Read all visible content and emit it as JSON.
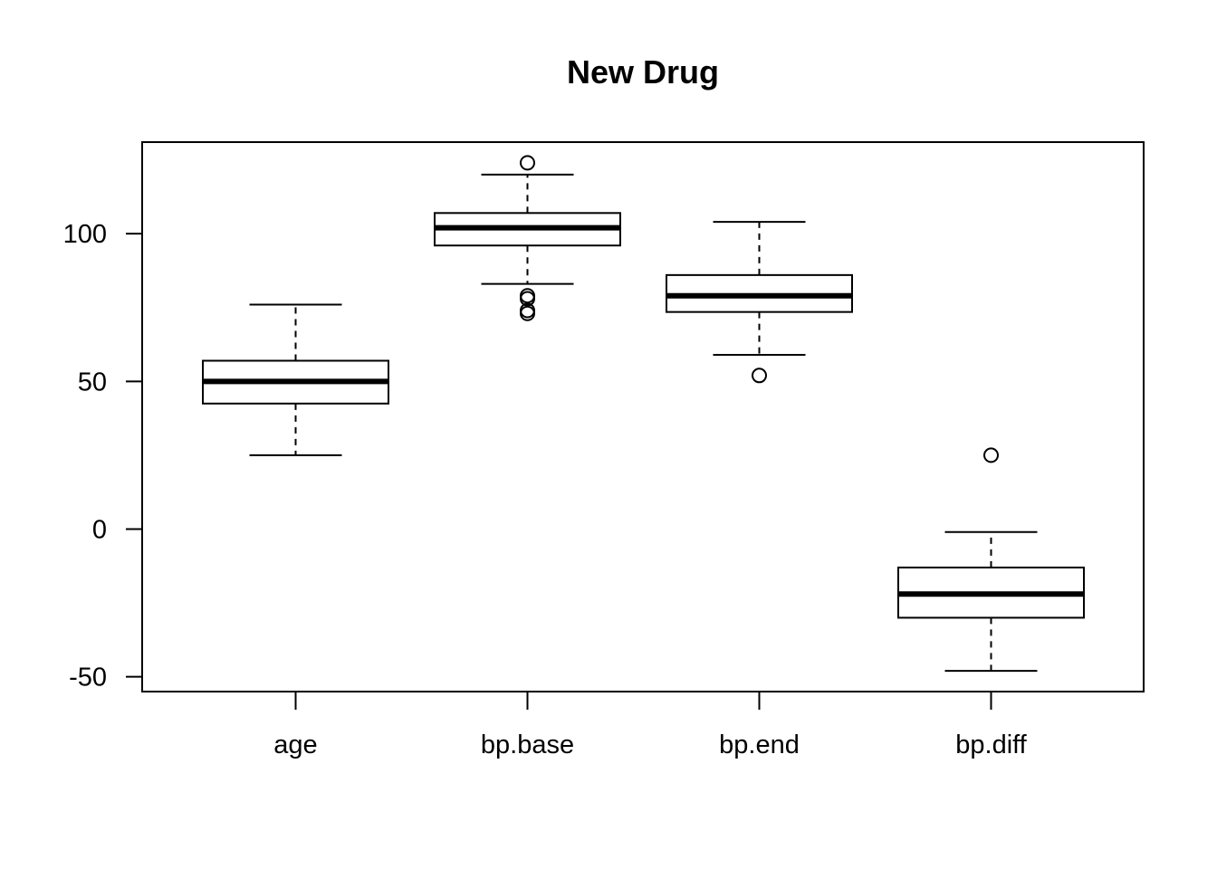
{
  "chart_data": {
    "type": "boxplot",
    "title": "New Drug",
    "xlabel": "",
    "ylabel": "",
    "ylim": [
      -55,
      131
    ],
    "y_ticks": [
      -50,
      0,
      50,
      100
    ],
    "y_tick_labels": [
      "-50",
      "0",
      "50",
      "100"
    ],
    "grid": false,
    "legend": "none",
    "categories": [
      "age",
      "bp.base",
      "bp.end",
      "bp.diff"
    ],
    "boxes": [
      {
        "name": "age",
        "whisker_low": 25,
        "q1": 42.5,
        "median": 50,
        "q3": 57,
        "whisker_high": 76,
        "outliers": []
      },
      {
        "name": "bp.base",
        "whisker_low": 83,
        "q1": 96,
        "median": 102,
        "q3": 107,
        "whisker_high": 120,
        "outliers": [
          79,
          78,
          74,
          73,
          124
        ]
      },
      {
        "name": "bp.end",
        "whisker_low": 59,
        "q1": 73.5,
        "median": 79,
        "q3": 86,
        "whisker_high": 104,
        "outliers": [
          52
        ]
      },
      {
        "name": "bp.diff",
        "whisker_low": -48,
        "q1": -30,
        "median": -22,
        "q3": -13,
        "whisker_high": -1,
        "outliers": [
          25
        ]
      }
    ]
  }
}
